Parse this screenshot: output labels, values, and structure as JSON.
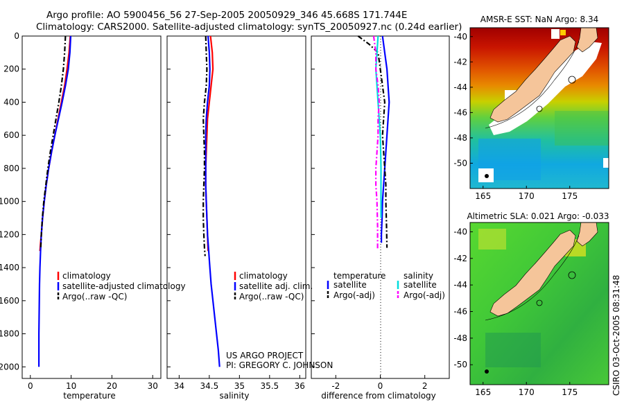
{
  "header": {
    "line1": "Argo profile: AO 5900456_56 27-Sep-2005 20050929_346 45.668S 171.744E",
    "line2": "Climatology: CARS2000. Satellite-adjusted climatology: synTS_20050927.nc (0.24d earlier)"
  },
  "colors": {
    "climatology": "#ff0000",
    "satellite": "#0000ff",
    "argo": "#000000",
    "sat_salinity": "#00dddd",
    "argo_adj_salinity": "#ff00ff",
    "land": "#f5c59a"
  },
  "credit": {
    "line1": "US ARGO PROJECT",
    "line2": "PI: GREGORY C. JOHNSON"
  },
  "stamp": "CSIRO 03-Oct-2005 08:31:48",
  "chart_data": [
    {
      "type": "line",
      "panel": "temperature",
      "xlabel": "temperature",
      "ylabel": "",
      "xlim": [
        -2,
        32
      ],
      "ylim": [
        2070,
        0
      ],
      "xticks": [
        0,
        10,
        20,
        30
      ],
      "yticks": [
        0,
        200,
        400,
        600,
        800,
        1000,
        1200,
        1400,
        1600,
        1800,
        2000
      ],
      "legend": [
        "climatology",
        "satellite-adjusted climatology",
        "Argo(..raw -QC)"
      ],
      "series": [
        {
          "name": "climatology",
          "style": "solid",
          "color": "#ff0000",
          "x": [
            9.8,
            9.5,
            9.0,
            8.4,
            7.6,
            6.8,
            6.0,
            5.2,
            4.5,
            3.9,
            3.4,
            3.0,
            2.7,
            2.5,
            2.35
          ],
          "y": [
            0,
            100,
            200,
            300,
            400,
            500,
            600,
            700,
            800,
            900,
            1000,
            1100,
            1200,
            1250,
            1300
          ]
        },
        {
          "name": "satellite-adjusted climatology",
          "style": "solid",
          "color": "#0000ff",
          "x": [
            9.9,
            9.7,
            9.3,
            8.6,
            7.8,
            6.9,
            6.0,
            5.2,
            4.5,
            3.9,
            3.4,
            3.0,
            2.7,
            2.5,
            2.35,
            2.25,
            2.2,
            2.15,
            2.1,
            2.1
          ],
          "y": [
            0,
            100,
            200,
            300,
            400,
            500,
            600,
            700,
            800,
            900,
            1000,
            1100,
            1200,
            1300,
            1400,
            1500,
            1600,
            1700,
            1800,
            2000
          ]
        },
        {
          "name": "Argo(..raw -QC)",
          "style": "dashed",
          "color": "#000000",
          "x": [
            8.6,
            8.4,
            8.1,
            7.6,
            7.0,
            6.3,
            5.6,
            4.9,
            4.3,
            3.8,
            3.3,
            2.95,
            2.7,
            2.55
          ],
          "y": [
            0,
            100,
            200,
            300,
            400,
            500,
            600,
            700,
            800,
            900,
            1000,
            1100,
            1200,
            1280
          ]
        }
      ]
    },
    {
      "type": "line",
      "panel": "salinity",
      "xlabel": "salinity",
      "xlim": [
        33.8,
        36.1
      ],
      "ylim": [
        2070,
        0
      ],
      "xticks": [
        34,
        34.5,
        35,
        35.5,
        36
      ],
      "legend": [
        "climatology",
        "satellite adj. clim.",
        "Argo(..raw -QC)"
      ],
      "series": [
        {
          "name": "climatology",
          "style": "solid",
          "color": "#ff0000",
          "x": [
            34.52,
            34.55,
            34.56,
            34.53,
            34.5,
            34.47,
            34.46,
            34.45,
            34.44,
            34.44,
            34.45,
            34.46,
            34.47,
            34.48
          ],
          "y": [
            0,
            100,
            200,
            300,
            400,
            500,
            600,
            700,
            800,
            900,
            1000,
            1100,
            1200,
            1300
          ]
        },
        {
          "name": "satellite adj. clim.",
          "style": "solid",
          "color": "#0000ff",
          "x": [
            34.48,
            34.5,
            34.51,
            34.5,
            34.47,
            34.45,
            34.44,
            34.44,
            34.44,
            34.44,
            34.45,
            34.46,
            34.47,
            34.49,
            34.51,
            34.53,
            34.56,
            34.59,
            34.62,
            34.65,
            34.67
          ],
          "y": [
            0,
            100,
            200,
            300,
            400,
            500,
            600,
            700,
            800,
            900,
            1000,
            1100,
            1200,
            1300,
            1400,
            1500,
            1600,
            1700,
            1800,
            1900,
            2000
          ]
        },
        {
          "name": "Argo(..raw -QC)",
          "style": "dashed",
          "color": "#000000",
          "x": [
            34.44,
            34.45,
            34.46,
            34.45,
            34.42,
            34.4,
            34.41,
            34.42,
            34.42,
            34.41,
            34.4,
            34.4,
            34.41,
            34.42,
            34.43
          ],
          "y": [
            0,
            100,
            200,
            300,
            400,
            500,
            600,
            700,
            800,
            900,
            1000,
            1100,
            1200,
            1280,
            1330
          ]
        }
      ]
    },
    {
      "type": "line",
      "panel": "difference",
      "xlabel": "difference from climatology",
      "xlim": [
        -3.1,
        3.1
      ],
      "ylim": [
        2070,
        0
      ],
      "xticks": [
        -2,
        0,
        2
      ],
      "legend": [
        "temperature",
        "satellite",
        "Argo(-adj)",
        "salinity",
        "satellite",
        "Argo(-adj)"
      ],
      "series": [
        {
          "name": "temperature satellite",
          "style": "solid",
          "color": "#0000ff",
          "x": [
            0.1,
            0.2,
            0.3,
            0.35,
            0.4,
            0.35,
            0.3,
            0.25,
            0.2,
            0.15,
            0.1,
            0.08,
            0.05,
            0.05
          ],
          "y": [
            0,
            100,
            200,
            300,
            400,
            500,
            600,
            700,
            800,
            900,
            1000,
            1100,
            1200,
            1250
          ]
        },
        {
          "name": "temperature Argo(-adj)",
          "style": "dashed",
          "color": "#000000",
          "x": [
            -1.0,
            -0.5,
            -0.1,
            0.0,
            0.1,
            0.2,
            0.15,
            0.1,
            0.15,
            0.2,
            0.25,
            0.25,
            0.28,
            0.3
          ],
          "y": [
            0,
            50,
            100,
            200,
            300,
            400,
            500,
            600,
            700,
            800,
            900,
            1000,
            1150,
            1280
          ]
        },
        {
          "name": "salinity satellite",
          "style": "solid",
          "color": "#00dddd",
          "x": [
            -0.1,
            -0.15,
            -0.2,
            -0.15,
            -0.1,
            -0.05,
            0.0,
            0.02,
            0.03,
            0.03,
            0.03,
            0.03
          ],
          "y": [
            0,
            100,
            200,
            300,
            400,
            500,
            600,
            700,
            800,
            900,
            1000,
            1100
          ]
        },
        {
          "name": "salinity Argo(-adj)",
          "style": "dashed",
          "color": "#ff00ff",
          "x": [
            -0.3,
            -0.2,
            -0.2,
            -0.1,
            -0.05,
            -0.1,
            -0.1,
            -0.15,
            -0.2,
            -0.2,
            -0.15,
            -0.12,
            -0.12
          ],
          "y": [
            0,
            100,
            200,
            300,
            400,
            500,
            600,
            700,
            800,
            900,
            1000,
            1150,
            1290
          ]
        }
      ]
    },
    {
      "type": "heatmap",
      "title": "AMSR-E SST: NaN Argo: 8.34",
      "xlim": [
        163.5,
        179.5
      ],
      "ylim": [
        -52,
        -39.3
      ],
      "xticks": [
        165,
        170,
        175
      ],
      "yticks": [
        -40,
        -42,
        -44,
        -46,
        -48,
        -50
      ]
    },
    {
      "type": "heatmap",
      "title": "Altimetric SLA: 0.021 Argo: -0.033",
      "xlim": [
        163.5,
        179.5
      ],
      "ylim": [
        -51.5,
        -39.3
      ],
      "xticks": [
        165,
        170,
        175
      ],
      "yticks": [
        -40,
        -42,
        -44,
        -46,
        -48,
        -50
      ]
    }
  ]
}
